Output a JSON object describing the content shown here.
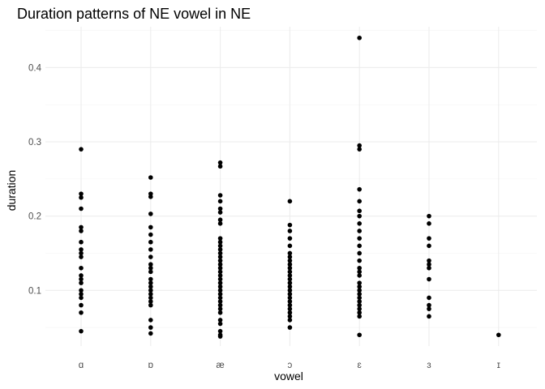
{
  "chart_data": {
    "type": "scatter",
    "title": "Duration patterns of NE vowel in NE",
    "xlabel": "vowel",
    "ylabel": "duration",
    "categories": [
      "ɑ",
      "ɒ",
      "æ",
      "ɔ",
      "ɛ",
      "ɜ",
      "ɪ"
    ],
    "ylim": [
      0.025,
      0.455
    ],
    "yticks": [
      0.1,
      0.2,
      0.3,
      0.4
    ],
    "ytick_labels": [
      "0.1",
      "0.2",
      "0.3",
      "0.4"
    ],
    "grid": true,
    "legend": "none",
    "point_color": "#000000",
    "points": {
      "ɑ": [
        0.29,
        0.23,
        0.225,
        0.21,
        0.185,
        0.18,
        0.165,
        0.155,
        0.15,
        0.145,
        0.13,
        0.12,
        0.115,
        0.11,
        0.1,
        0.095,
        0.09,
        0.08,
        0.07,
        0.045
      ],
      "ɒ": [
        0.252,
        0.23,
        0.226,
        0.203,
        0.185,
        0.175,
        0.165,
        0.155,
        0.145,
        0.135,
        0.13,
        0.125,
        0.115,
        0.11,
        0.105,
        0.1,
        0.095,
        0.09,
        0.085,
        0.08,
        0.06,
        0.05,
        0.042
      ],
      "æ": [
        0.272,
        0.267,
        0.228,
        0.22,
        0.21,
        0.205,
        0.195,
        0.19,
        0.17,
        0.165,
        0.16,
        0.155,
        0.15,
        0.145,
        0.14,
        0.135,
        0.13,
        0.125,
        0.12,
        0.115,
        0.11,
        0.105,
        0.1,
        0.095,
        0.09,
        0.085,
        0.08,
        0.075,
        0.07,
        0.06,
        0.055,
        0.045,
        0.04,
        0.038
      ],
      "ɔ": [
        0.22,
        0.188,
        0.18,
        0.17,
        0.16,
        0.15,
        0.145,
        0.14,
        0.135,
        0.13,
        0.125,
        0.12,
        0.115,
        0.11,
        0.105,
        0.1,
        0.095,
        0.09,
        0.085,
        0.08,
        0.075,
        0.07,
        0.065,
        0.06,
        0.05
      ],
      "ɛ": [
        0.44,
        0.295,
        0.29,
        0.236,
        0.22,
        0.207,
        0.2,
        0.19,
        0.18,
        0.17,
        0.16,
        0.15,
        0.14,
        0.13,
        0.125,
        0.12,
        0.11,
        0.105,
        0.1,
        0.095,
        0.09,
        0.085,
        0.08,
        0.075,
        0.07,
        0.065,
        0.04
      ],
      "ɜ": [
        0.2,
        0.19,
        0.17,
        0.16,
        0.14,
        0.135,
        0.13,
        0.115,
        0.09,
        0.08,
        0.075,
        0.065
      ],
      "ɪ": [
        0.04
      ]
    }
  }
}
